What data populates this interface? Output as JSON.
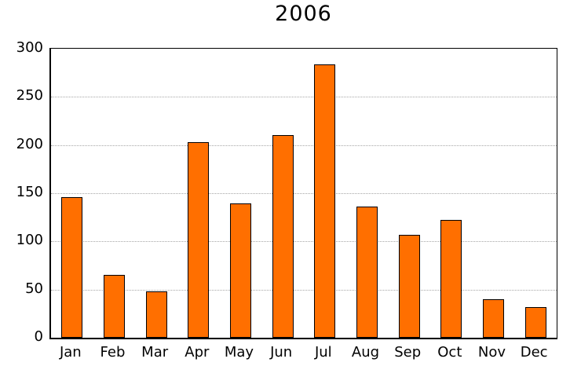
{
  "chart_data": {
    "type": "bar",
    "title": "2006",
    "categories": [
      "Jan",
      "Feb",
      "Mar",
      "Apr",
      "May",
      "Jun",
      "Jul",
      "Aug",
      "Sep",
      "Oct",
      "Nov",
      "Dec"
    ],
    "values": [
      146,
      65,
      48,
      203,
      139,
      210,
      284,
      136,
      107,
      122,
      40,
      32
    ],
    "xlabel": "",
    "ylabel": "",
    "ylim": [
      0,
      300
    ],
    "yticks": [
      0,
      50,
      100,
      150,
      200,
      250,
      300
    ],
    "grid": "horizontal-dotted",
    "legend_position": "none",
    "colors": {
      "bar_fill": "#ff6f00",
      "bar_border": "#000000",
      "grid_line": "#a6a6a6",
      "axis": "#000000",
      "text": "#000000",
      "background": "#ffffff"
    }
  }
}
